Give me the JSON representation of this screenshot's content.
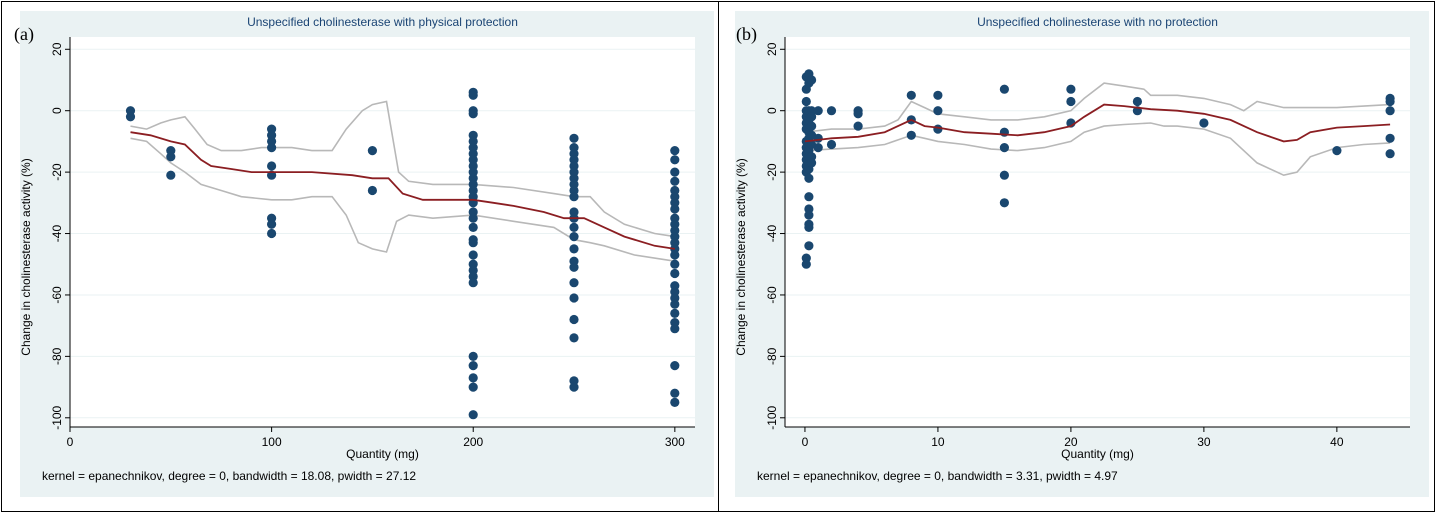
{
  "chart_data": [
    {
      "type": "scatter",
      "panel_label": "(a)",
      "title": "Unspecified cholinesterase with physical protection",
      "xlabel": "Quantity (mg)",
      "ylabel": "Change in cholinesterase activity (%)",
      "xlim": [
        0,
        310
      ],
      "ylim": [
        -103,
        24
      ],
      "xticks": [
        0,
        100,
        200,
        300
      ],
      "yticks": [
        20,
        0,
        -20,
        -40,
        -60,
        -80,
        -100
      ],
      "grid": true,
      "note": "kernel = epanechnikov, degree = 0, bandwidth = 18.08, pwidth = 27.12",
      "points": [
        [
          30,
          0
        ],
        [
          30,
          -2
        ],
        [
          50,
          -13
        ],
        [
          50,
          -15
        ],
        [
          50,
          -21
        ],
        [
          100,
          -6
        ],
        [
          100,
          -8
        ],
        [
          100,
          -10
        ],
        [
          100,
          -12
        ],
        [
          100,
          -18
        ],
        [
          100,
          -21
        ],
        [
          100,
          -35
        ],
        [
          100,
          -37
        ],
        [
          100,
          -40
        ],
        [
          150,
          -13
        ],
        [
          150,
          -26
        ],
        [
          200,
          6
        ],
        [
          200,
          5
        ],
        [
          200,
          0
        ],
        [
          200,
          -1
        ],
        [
          200,
          -8
        ],
        [
          200,
          -10
        ],
        [
          200,
          -12
        ],
        [
          200,
          -14
        ],
        [
          200,
          -16
        ],
        [
          200,
          -18
        ],
        [
          200,
          -20
        ],
        [
          200,
          -22
        ],
        [
          200,
          -24
        ],
        [
          200,
          -26
        ],
        [
          200,
          -28
        ],
        [
          200,
          -30
        ],
        [
          200,
          -33
        ],
        [
          200,
          -35
        ],
        [
          200,
          -38
        ],
        [
          200,
          -42
        ],
        [
          200,
          -43
        ],
        [
          200,
          -47
        ],
        [
          200,
          -50
        ],
        [
          200,
          -52
        ],
        [
          200,
          -54
        ],
        [
          200,
          -56
        ],
        [
          200,
          -80
        ],
        [
          200,
          -83
        ],
        [
          200,
          -87
        ],
        [
          200,
          -90
        ],
        [
          200,
          -99
        ],
        [
          250,
          -9
        ],
        [
          250,
          -12
        ],
        [
          250,
          -14
        ],
        [
          250,
          -16
        ],
        [
          250,
          -18
        ],
        [
          250,
          -20
        ],
        [
          250,
          -22
        ],
        [
          250,
          -24
        ],
        [
          250,
          -26
        ],
        [
          250,
          -28
        ],
        [
          250,
          -33
        ],
        [
          250,
          -35
        ],
        [
          250,
          -38
        ],
        [
          250,
          -41
        ],
        [
          250,
          -45
        ],
        [
          250,
          -49
        ],
        [
          250,
          -51
        ],
        [
          250,
          -56
        ],
        [
          250,
          -61
        ],
        [
          250,
          -68
        ],
        [
          250,
          -74
        ],
        [
          250,
          -88
        ],
        [
          250,
          -90
        ],
        [
          300,
          -13
        ],
        [
          300,
          -16
        ],
        [
          300,
          -20
        ],
        [
          300,
          -23
        ],
        [
          300,
          -26
        ],
        [
          300,
          -28
        ],
        [
          300,
          -30
        ],
        [
          300,
          -32
        ],
        [
          300,
          -35
        ],
        [
          300,
          -37
        ],
        [
          300,
          -39
        ],
        [
          300,
          -41
        ],
        [
          300,
          -43
        ],
        [
          300,
          -45
        ],
        [
          300,
          -47
        ],
        [
          300,
          -50
        ],
        [
          300,
          -53
        ],
        [
          300,
          -57
        ],
        [
          300,
          -59
        ],
        [
          300,
          -61
        ],
        [
          300,
          -63
        ],
        [
          300,
          -66
        ],
        [
          300,
          -69
        ],
        [
          300,
          -71
        ],
        [
          300,
          -83
        ],
        [
          300,
          -92
        ],
        [
          300,
          -95
        ]
      ],
      "fit": [
        [
          30,
          -7
        ],
        [
          40,
          -8
        ],
        [
          50,
          -10
        ],
        [
          57,
          -11
        ],
        [
          65,
          -16
        ],
        [
          70,
          -18
        ],
        [
          80,
          -19
        ],
        [
          90,
          -20
        ],
        [
          100,
          -20
        ],
        [
          120,
          -20
        ],
        [
          140,
          -21
        ],
        [
          150,
          -22
        ],
        [
          158,
          -22
        ],
        [
          165,
          -27
        ],
        [
          175,
          -29
        ],
        [
          200,
          -29
        ],
        [
          210,
          -30
        ],
        [
          220,
          -31
        ],
        [
          235,
          -33
        ],
        [
          245,
          -35
        ],
        [
          255,
          -35
        ],
        [
          265,
          -38
        ],
        [
          275,
          -41
        ],
        [
          290,
          -44
        ],
        [
          300,
          -45
        ]
      ],
      "upper": [
        [
          30,
          -5
        ],
        [
          38,
          -6
        ],
        [
          45,
          -4
        ],
        [
          50,
          -3
        ],
        [
          57,
          -2
        ],
        [
          62,
          -6
        ],
        [
          68,
          -11
        ],
        [
          75,
          -13
        ],
        [
          85,
          -13
        ],
        [
          95,
          -12
        ],
        [
          110,
          -12
        ],
        [
          120,
          -13
        ],
        [
          130,
          -13
        ],
        [
          137,
          -6
        ],
        [
          145,
          0
        ],
        [
          150,
          2
        ],
        [
          157,
          3
        ],
        [
          163,
          -20
        ],
        [
          168,
          -23
        ],
        [
          180,
          -24
        ],
        [
          200,
          -24
        ],
        [
          220,
          -25
        ],
        [
          240,
          -27
        ],
        [
          250,
          -28
        ],
        [
          258,
          -28
        ],
        [
          265,
          -33
        ],
        [
          275,
          -37
        ],
        [
          290,
          -40
        ],
        [
          300,
          -41
        ]
      ],
      "lower": [
        [
          30,
          -9
        ],
        [
          38,
          -10
        ],
        [
          45,
          -14
        ],
        [
          50,
          -17
        ],
        [
          57,
          -20
        ],
        [
          65,
          -24
        ],
        [
          75,
          -26
        ],
        [
          85,
          -28
        ],
        [
          100,
          -29
        ],
        [
          110,
          -29
        ],
        [
          120,
          -28
        ],
        [
          130,
          -28
        ],
        [
          137,
          -34
        ],
        [
          143,
          -43
        ],
        [
          150,
          -45
        ],
        [
          157,
          -46
        ],
        [
          162,
          -36
        ],
        [
          168,
          -34
        ],
        [
          180,
          -35
        ],
        [
          200,
          -34
        ],
        [
          220,
          -36
        ],
        [
          240,
          -38
        ],
        [
          250,
          -42
        ],
        [
          258,
          -43
        ],
        [
          265,
          -44
        ],
        [
          280,
          -47
        ],
        [
          300,
          -49
        ]
      ]
    },
    {
      "type": "scatter",
      "panel_label": "(b)",
      "title": "Unspecified cholinesterase with no protection",
      "xlabel": "Quantity (mg)",
      "ylabel": "Change in cholinesterase activity (%)",
      "xlim": [
        -1.5,
        45.5
      ],
      "ylim": [
        -103,
        24
      ],
      "xticks": [
        0,
        10,
        20,
        30,
        40
      ],
      "yticks": [
        20,
        0,
        -20,
        -40,
        -60,
        -80,
        -100
      ],
      "grid": true,
      "note": "kernel = epanechnikov, degree = 0, bandwidth = 3.31, pwidth = 4.97",
      "points": [
        [
          0.1,
          11
        ],
        [
          0.1,
          7
        ],
        [
          0.1,
          3
        ],
        [
          0.1,
          0
        ],
        [
          0.1,
          -2
        ],
        [
          0.1,
          -4
        ],
        [
          0.1,
          -6
        ],
        [
          0.1,
          -10
        ],
        [
          0.1,
          -12
        ],
        [
          0.1,
          -14
        ],
        [
          0.1,
          -16
        ],
        [
          0.1,
          -18
        ],
        [
          0.1,
          -20
        ],
        [
          0.1,
          -48
        ],
        [
          0.1,
          -50
        ],
        [
          0.3,
          12
        ],
        [
          0.3,
          9
        ],
        [
          0.3,
          0
        ],
        [
          0.3,
          -3
        ],
        [
          0.3,
          -7
        ],
        [
          0.3,
          -9
        ],
        [
          0.3,
          -13
        ],
        [
          0.3,
          -15
        ],
        [
          0.3,
          -19
        ],
        [
          0.3,
          -22
        ],
        [
          0.3,
          -28
        ],
        [
          0.3,
          -32
        ],
        [
          0.3,
          -34
        ],
        [
          0.3,
          -37
        ],
        [
          0.3,
          -38
        ],
        [
          0.3,
          -44
        ],
        [
          0.5,
          10
        ],
        [
          0.5,
          0
        ],
        [
          0.5,
          -2
        ],
        [
          0.5,
          -5
        ],
        [
          0.5,
          -8
        ],
        [
          0.5,
          -11
        ],
        [
          0.5,
          -15
        ],
        [
          0.5,
          -17
        ],
        [
          1,
          0
        ],
        [
          1,
          -9
        ],
        [
          1,
          -12
        ],
        [
          2,
          0
        ],
        [
          2,
          -11
        ],
        [
          4,
          0
        ],
        [
          4,
          -1
        ],
        [
          4,
          -5
        ],
        [
          8,
          5
        ],
        [
          8,
          -3
        ],
        [
          8,
          -8
        ],
        [
          10,
          5
        ],
        [
          10,
          0
        ],
        [
          10,
          -6
        ],
        [
          15,
          7
        ],
        [
          15,
          -7
        ],
        [
          15,
          -12
        ],
        [
          15,
          -21
        ],
        [
          15,
          -30
        ],
        [
          20,
          7
        ],
        [
          20,
          3
        ],
        [
          20,
          -4
        ],
        [
          25,
          3
        ],
        [
          25,
          0
        ],
        [
          30,
          -4
        ],
        [
          40,
          -13
        ],
        [
          44,
          4
        ],
        [
          44,
          3
        ],
        [
          44,
          0
        ],
        [
          44,
          -9
        ],
        [
          44,
          -14
        ]
      ],
      "fit": [
        [
          0,
          -10
        ],
        [
          1,
          -9.5
        ],
        [
          2,
          -9
        ],
        [
          4,
          -8.5
        ],
        [
          6,
          -7
        ],
        [
          8,
          -3
        ],
        [
          9,
          -5
        ],
        [
          10,
          -5.5
        ],
        [
          12,
          -7
        ],
        [
          14,
          -7.5
        ],
        [
          16,
          -8
        ],
        [
          18,
          -7
        ],
        [
          20,
          -5
        ],
        [
          21,
          -2
        ],
        [
          22.5,
          2
        ],
        [
          24,
          1.5
        ],
        [
          26,
          0.5
        ],
        [
          28,
          0
        ],
        [
          30,
          -1
        ],
        [
          32,
          -3
        ],
        [
          34,
          -7
        ],
        [
          36,
          -10
        ],
        [
          37,
          -9.5
        ],
        [
          38,
          -7
        ],
        [
          40,
          -5.5
        ],
        [
          42,
          -5
        ],
        [
          44,
          -4.5
        ]
      ],
      "upper": [
        [
          0,
          -7
        ],
        [
          2,
          -6
        ],
        [
          4,
          -6
        ],
        [
          6,
          -5
        ],
        [
          7,
          -3
        ],
        [
          8,
          3
        ],
        [
          9,
          1
        ],
        [
          10,
          -1
        ],
        [
          12,
          -2
        ],
        [
          14,
          -3
        ],
        [
          16,
          -3
        ],
        [
          18,
          -2
        ],
        [
          20,
          0
        ],
        [
          21,
          4
        ],
        [
          22.5,
          9
        ],
        [
          24,
          8
        ],
        [
          25.5,
          7
        ],
        [
          26,
          5
        ],
        [
          28,
          5
        ],
        [
          30,
          4
        ],
        [
          32,
          2
        ],
        [
          33,
          0
        ],
        [
          34,
          3
        ],
        [
          36,
          1
        ],
        [
          38,
          1
        ],
        [
          40,
          1
        ],
        [
          42,
          1.5
        ],
        [
          44,
          2
        ]
      ],
      "lower": [
        [
          0,
          -13
        ],
        [
          2,
          -12.5
        ],
        [
          4,
          -12
        ],
        [
          6,
          -11
        ],
        [
          8,
          -8
        ],
        [
          9,
          -9
        ],
        [
          10,
          -10
        ],
        [
          12,
          -11
        ],
        [
          14,
          -12.5
        ],
        [
          16,
          -13
        ],
        [
          18,
          -12
        ],
        [
          20,
          -10
        ],
        [
          21,
          -7
        ],
        [
          22.5,
          -5
        ],
        [
          24,
          -4.5
        ],
        [
          26,
          -4
        ],
        [
          27,
          -5
        ],
        [
          28,
          -5
        ],
        [
          30,
          -6
        ],
        [
          32,
          -9
        ],
        [
          34,
          -17
        ],
        [
          36,
          -21
        ],
        [
          37,
          -20
        ],
        [
          38,
          -15
        ],
        [
          40,
          -12
        ],
        [
          42,
          -11
        ],
        [
          44,
          -10.5
        ]
      ]
    }
  ]
}
